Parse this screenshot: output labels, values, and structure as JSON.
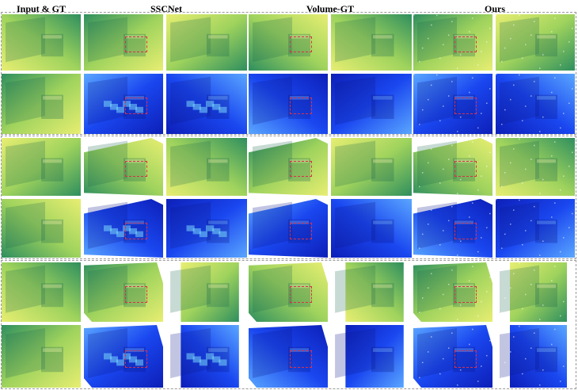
{
  "figure": {
    "columns": [
      {
        "key": "input",
        "label": "Input & GT"
      },
      {
        "key": "sscnet",
        "label": "SSCNet"
      },
      {
        "key": "volume_gt",
        "label": "Volume-GT"
      },
      {
        "key": "ours",
        "label": "Ours"
      }
    ],
    "scenes": 3,
    "rows_per_scene": [
      "depth",
      "normal"
    ],
    "panel_kinds": [
      "full",
      "zoom"
    ],
    "colors": {
      "depth_light": "#e7ee72",
      "depth_mid": "#9fd35d",
      "depth_dark": "#2f8f5e",
      "normal_light": "#5aa6ff",
      "normal_mid": "#1a47f0",
      "normal_dark": "#0d1fb8",
      "crop_box": "#d9304a",
      "frame": "#9a9a9a"
    }
  }
}
